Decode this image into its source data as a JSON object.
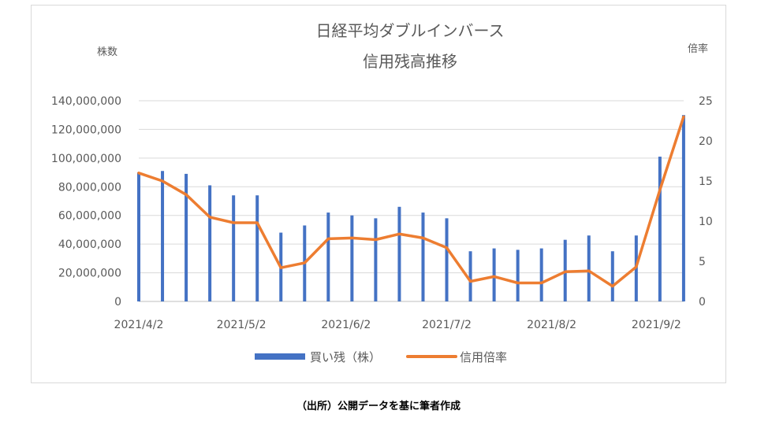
{
  "chart_data": {
    "type": "bar",
    "title_lines": [
      "日経平均ダブルインバース",
      "信用残高推移"
    ],
    "ylabel_left": "株数",
    "ylabel_right": "倍率",
    "y_left_ticks": [
      "0",
      "20,000,000",
      "40,000,000",
      "60,000,000",
      "80,000,000",
      "100,000,000",
      "120,000,000",
      "140,000,000"
    ],
    "y_right_ticks": [
      "0",
      "5",
      "10",
      "15",
      "20",
      "25"
    ],
    "ylim_left": [
      0,
      140000000
    ],
    "ylim_right": [
      0,
      25
    ],
    "x_tick_labels": [
      "2021/4/2",
      "2021/5/2",
      "2021/6/2",
      "2021/7/2",
      "2021/8/2",
      "2021/9/2"
    ],
    "x_tick_positions": [
      0,
      4.33,
      8.75,
      13.0,
      17.43,
      21.85
    ],
    "legend_position": "bottom",
    "grid": true,
    "series": [
      {
        "name": "買い残（株）",
        "type": "bar",
        "axis": "left",
        "color": "#4472c4",
        "values": [
          90000000,
          91000000,
          89000000,
          81000000,
          74000000,
          74000000,
          48000000,
          53000000,
          62000000,
          60000000,
          58000000,
          66000000,
          62000000,
          58000000,
          35000000,
          37000000,
          36000000,
          37000000,
          43000000,
          46000000,
          35000000,
          46000000,
          101000000,
          130000000
        ]
      },
      {
        "name": "信用倍率",
        "type": "line",
        "axis": "right",
        "color": "#ed7d31",
        "values": [
          16.0,
          15.0,
          13.3,
          10.5,
          9.8,
          9.8,
          4.2,
          4.8,
          7.8,
          7.9,
          7.7,
          8.4,
          7.9,
          6.7,
          2.5,
          3.1,
          2.3,
          2.3,
          3.7,
          3.8,
          1.9,
          4.3,
          13.9,
          23.0
        ]
      }
    ]
  },
  "caption": "（出所）公開データを基に筆者作成"
}
